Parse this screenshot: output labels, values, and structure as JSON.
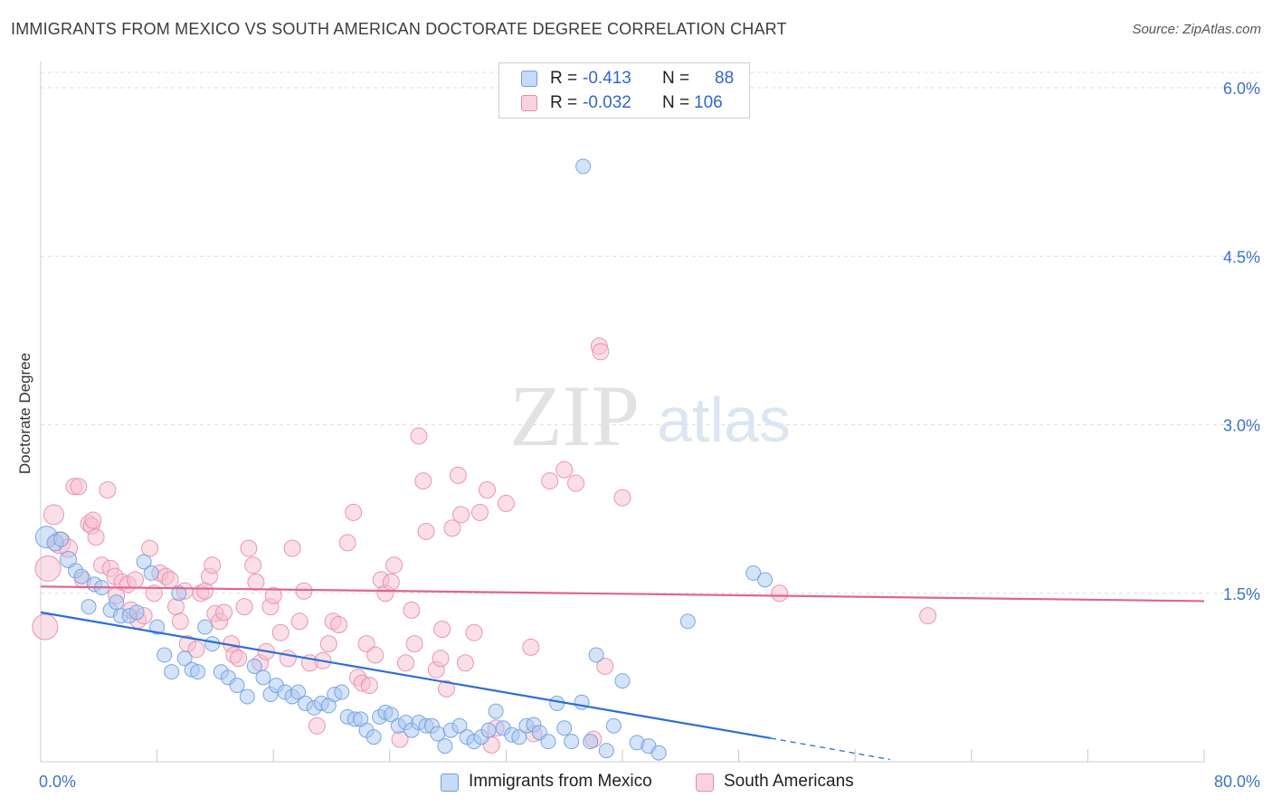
{
  "title": "IMMIGRANTS FROM MEXICO VS SOUTH AMERICAN DOCTORATE DEGREE CORRELATION CHART",
  "source": "Source: ZipAtlas.com",
  "watermark": {
    "zip": "ZIP",
    "atlas": "atlas"
  },
  "colors": {
    "blue_fill": "#a9c8f0",
    "blue_stroke": "#6d9ee0",
    "blue_line": "#2a6fd6",
    "pink_fill": "#f6bfd0",
    "pink_stroke": "#e98aaa",
    "pink_line": "#e2638e",
    "axis_text": "#3b73c9",
    "grid": "#dddddd"
  },
  "legend": {
    "rows": [
      {
        "r_label": "R =",
        "r_value": "-0.413",
        "n_label": "N =",
        "n_value": "88"
      },
      {
        "r_label": "R =",
        "r_value": "-0.032",
        "n_label": "N =",
        "n_value": "106"
      }
    ],
    "bottom": [
      "Immigrants from Mexico",
      "South Americans"
    ]
  },
  "chart_data": {
    "type": "scatter",
    "title": "IMMIGRANTS FROM MEXICO VS SOUTH AMERICAN DOCTORATE DEGREE CORRELATION CHART",
    "xlabel": "",
    "ylabel": "Doctorate Degree",
    "xlim": [
      0,
      80
    ],
    "ylim": [
      0,
      6.0
    ],
    "x_tick_labels": [
      "0.0%",
      "80.0%"
    ],
    "y_ticks": [
      1.5,
      3.0,
      4.5,
      6.0
    ],
    "y_tick_labels": [
      "1.5%",
      "3.0%",
      "4.5%",
      "6.0%"
    ],
    "grid": true,
    "legend_position": "top-center",
    "series": [
      {
        "name": "Immigrants from Mexico",
        "trend": {
          "x": [
            0,
            50.2
          ],
          "y": [
            1.33,
            0.21
          ],
          "dashed_to": [
            58.4,
            0.02
          ]
        },
        "points": [
          [
            0.4,
            2.0
          ],
          [
            1.0,
            1.95
          ],
          [
            1.4,
            1.98
          ],
          [
            1.9,
            1.8
          ],
          [
            2.4,
            1.7
          ],
          [
            2.8,
            1.65
          ],
          [
            3.3,
            1.38
          ],
          [
            3.7,
            1.58
          ],
          [
            4.2,
            1.55
          ],
          [
            4.8,
            1.35
          ],
          [
            5.2,
            1.42
          ],
          [
            5.5,
            1.3
          ],
          [
            6.1,
            1.3
          ],
          [
            6.6,
            1.33
          ],
          [
            7.1,
            1.78
          ],
          [
            7.6,
            1.68
          ],
          [
            8.0,
            1.2
          ],
          [
            8.5,
            0.95
          ],
          [
            9.0,
            0.8
          ],
          [
            9.5,
            1.5
          ],
          [
            9.9,
            0.92
          ],
          [
            10.4,
            0.82
          ],
          [
            10.8,
            0.8
          ],
          [
            11.3,
            1.2
          ],
          [
            11.8,
            1.05
          ],
          [
            12.4,
            0.8
          ],
          [
            12.9,
            0.75
          ],
          [
            13.5,
            0.68
          ],
          [
            14.2,
            0.58
          ],
          [
            14.7,
            0.85
          ],
          [
            15.3,
            0.75
          ],
          [
            15.8,
            0.6
          ],
          [
            16.2,
            0.68
          ],
          [
            16.8,
            0.62
          ],
          [
            17.3,
            0.58
          ],
          [
            17.7,
            0.62
          ],
          [
            18.2,
            0.52
          ],
          [
            18.8,
            0.48
          ],
          [
            19.3,
            0.52
          ],
          [
            19.8,
            0.5
          ],
          [
            20.2,
            0.6
          ],
          [
            20.7,
            0.62
          ],
          [
            21.1,
            0.4
          ],
          [
            21.6,
            0.38
          ],
          [
            22.0,
            0.38
          ],
          [
            22.4,
            0.28
          ],
          [
            22.9,
            0.22
          ],
          [
            23.3,
            0.4
          ],
          [
            23.7,
            0.44
          ],
          [
            24.1,
            0.42
          ],
          [
            24.6,
            0.32
          ],
          [
            25.1,
            0.35
          ],
          [
            25.5,
            0.28
          ],
          [
            26.0,
            0.35
          ],
          [
            26.5,
            0.32
          ],
          [
            26.9,
            0.32
          ],
          [
            27.3,
            0.25
          ],
          [
            27.8,
            0.14
          ],
          [
            28.2,
            0.28
          ],
          [
            28.8,
            0.32
          ],
          [
            29.3,
            0.22
          ],
          [
            29.8,
            0.18
          ],
          [
            30.3,
            0.22
          ],
          [
            30.8,
            0.28
          ],
          [
            31.3,
            0.45
          ],
          [
            31.8,
            0.3
          ],
          [
            32.4,
            0.24
          ],
          [
            32.9,
            0.22
          ],
          [
            33.4,
            0.32
          ],
          [
            33.9,
            0.33
          ],
          [
            34.3,
            0.26
          ],
          [
            34.9,
            0.18
          ],
          [
            35.5,
            0.52
          ],
          [
            36.0,
            0.3
          ],
          [
            36.5,
            0.18
          ],
          [
            37.2,
            0.53
          ],
          [
            37.8,
            0.18
          ],
          [
            38.2,
            0.95
          ],
          [
            38.9,
            0.1
          ],
          [
            39.4,
            0.32
          ],
          [
            40.0,
            0.72
          ],
          [
            41.0,
            0.17
          ],
          [
            41.8,
            0.14
          ],
          [
            42.5,
            0.08
          ],
          [
            44.5,
            1.25
          ],
          [
            49.0,
            1.68
          ],
          [
            49.8,
            1.62
          ],
          [
            37.3,
            5.3
          ]
        ],
        "radii": [
          12,
          9,
          8,
          9,
          8,
          8,
          8,
          8,
          8,
          8,
          8,
          8,
          8,
          8,
          8,
          8,
          8,
          8,
          8,
          8,
          8,
          8,
          8,
          8,
          8,
          8,
          8,
          8,
          8,
          8,
          8,
          8,
          8,
          8,
          8,
          8,
          8,
          8,
          8,
          8,
          8,
          8,
          8,
          8,
          8,
          8,
          8,
          8,
          8,
          8,
          8,
          8,
          8,
          8,
          8,
          8,
          8,
          8,
          8,
          8,
          8,
          8,
          8,
          8,
          8,
          8,
          8,
          8,
          8,
          8,
          8,
          8,
          8,
          8,
          8,
          8,
          8,
          8,
          8,
          8,
          8,
          8,
          8,
          8,
          8,
          8,
          8,
          8
        ]
      },
      {
        "name": "South Americans",
        "trend": {
          "x": [
            0,
            80
          ],
          "y": [
            1.56,
            1.43
          ]
        },
        "points": [
          [
            0.3,
            1.2
          ],
          [
            0.5,
            1.72
          ],
          [
            0.9,
            2.2
          ],
          [
            1.3,
            1.95
          ],
          [
            1.9,
            1.9
          ],
          [
            2.3,
            2.45
          ],
          [
            2.6,
            2.45
          ],
          [
            2.9,
            1.62
          ],
          [
            3.3,
            2.12
          ],
          [
            3.5,
            2.1
          ],
          [
            3.6,
            2.15
          ],
          [
            3.8,
            2.0
          ],
          [
            4.2,
            1.75
          ],
          [
            4.6,
            2.42
          ],
          [
            4.8,
            1.72
          ],
          [
            5.1,
            1.65
          ],
          [
            5.2,
            1.48
          ],
          [
            5.6,
            1.6
          ],
          [
            6.0,
            1.58
          ],
          [
            6.2,
            1.35
          ],
          [
            6.5,
            1.62
          ],
          [
            6.7,
            1.26
          ],
          [
            7.1,
            1.3
          ],
          [
            7.5,
            1.9
          ],
          [
            7.8,
            1.5
          ],
          [
            8.2,
            1.68
          ],
          [
            8.6,
            1.65
          ],
          [
            8.9,
            1.62
          ],
          [
            9.3,
            1.38
          ],
          [
            9.6,
            1.25
          ],
          [
            9.9,
            1.52
          ],
          [
            10.1,
            1.05
          ],
          [
            10.7,
            1.0
          ],
          [
            11.0,
            1.5
          ],
          [
            11.3,
            1.52
          ],
          [
            11.6,
            1.65
          ],
          [
            11.8,
            1.75
          ],
          [
            12.0,
            1.32
          ],
          [
            12.3,
            1.25
          ],
          [
            12.6,
            1.33
          ],
          [
            13.1,
            1.05
          ],
          [
            13.3,
            0.95
          ],
          [
            13.6,
            0.92
          ],
          [
            14.0,
            1.38
          ],
          [
            14.3,
            1.9
          ],
          [
            14.6,
            1.75
          ],
          [
            14.8,
            1.6
          ],
          [
            15.1,
            0.88
          ],
          [
            15.5,
            0.98
          ],
          [
            15.8,
            1.38
          ],
          [
            16.0,
            1.48
          ],
          [
            16.5,
            1.15
          ],
          [
            17.0,
            0.92
          ],
          [
            17.3,
            1.9
          ],
          [
            17.8,
            1.25
          ],
          [
            18.1,
            1.52
          ],
          [
            18.5,
            0.88
          ],
          [
            19.0,
            0.32
          ],
          [
            19.4,
            0.9
          ],
          [
            19.8,
            1.05
          ],
          [
            20.1,
            1.25
          ],
          [
            20.5,
            1.22
          ],
          [
            21.1,
            1.95
          ],
          [
            21.5,
            2.22
          ],
          [
            21.8,
            0.75
          ],
          [
            22.1,
            0.7
          ],
          [
            22.4,
            1.05
          ],
          [
            22.6,
            0.68
          ],
          [
            23.0,
            0.95
          ],
          [
            23.4,
            1.62
          ],
          [
            23.7,
            1.5
          ],
          [
            24.1,
            1.6
          ],
          [
            24.3,
            1.75
          ],
          [
            24.7,
            0.2
          ],
          [
            25.1,
            0.88
          ],
          [
            25.5,
            1.35
          ],
          [
            25.7,
            1.05
          ],
          [
            26.0,
            2.9
          ],
          [
            26.3,
            2.5
          ],
          [
            26.5,
            2.05
          ],
          [
            27.2,
            0.82
          ],
          [
            27.5,
            0.92
          ],
          [
            27.6,
            1.18
          ],
          [
            27.9,
            0.65
          ],
          [
            28.3,
            2.08
          ],
          [
            28.7,
            2.55
          ],
          [
            28.9,
            2.2
          ],
          [
            29.2,
            0.88
          ],
          [
            29.8,
            1.15
          ],
          [
            30.2,
            2.22
          ],
          [
            30.7,
            2.42
          ],
          [
            31.0,
            0.15
          ],
          [
            31.3,
            0.3
          ],
          [
            32.0,
            2.3
          ],
          [
            33.7,
            1.02
          ],
          [
            33.9,
            0.25
          ],
          [
            35.0,
            2.5
          ],
          [
            36.0,
            2.6
          ],
          [
            36.8,
            2.48
          ],
          [
            38.0,
            0.2
          ],
          [
            38.4,
            3.7
          ],
          [
            38.5,
            3.65
          ],
          [
            38.8,
            0.85
          ],
          [
            40.0,
            2.35
          ],
          [
            50.8,
            1.5
          ],
          [
            61.0,
            1.3
          ]
        ],
        "radii": [
          14,
          14,
          11,
          12,
          10,
          9,
          9,
          9,
          9,
          9,
          9,
          9,
          9,
          9,
          9,
          9,
          9,
          9,
          9,
          9,
          9,
          9,
          9,
          9,
          9,
          9,
          9,
          9,
          9,
          9,
          9,
          9,
          9,
          9,
          9,
          9,
          9,
          9,
          9,
          9,
          9,
          9,
          9,
          9,
          9,
          9,
          9,
          9,
          9,
          9,
          9,
          9,
          9,
          9,
          9,
          9,
          9,
          9,
          9,
          9,
          9,
          9,
          9,
          9,
          9,
          9,
          9,
          9,
          9,
          9,
          9,
          9,
          9,
          9,
          9,
          9,
          9,
          9,
          9,
          9,
          9,
          9,
          9,
          9,
          9,
          9,
          9,
          9,
          9,
          9,
          9,
          9,
          9,
          9,
          9,
          9,
          9,
          9,
          9,
          9,
          9,
          9,
          9,
          9,
          9,
          9
        ]
      }
    ]
  }
}
